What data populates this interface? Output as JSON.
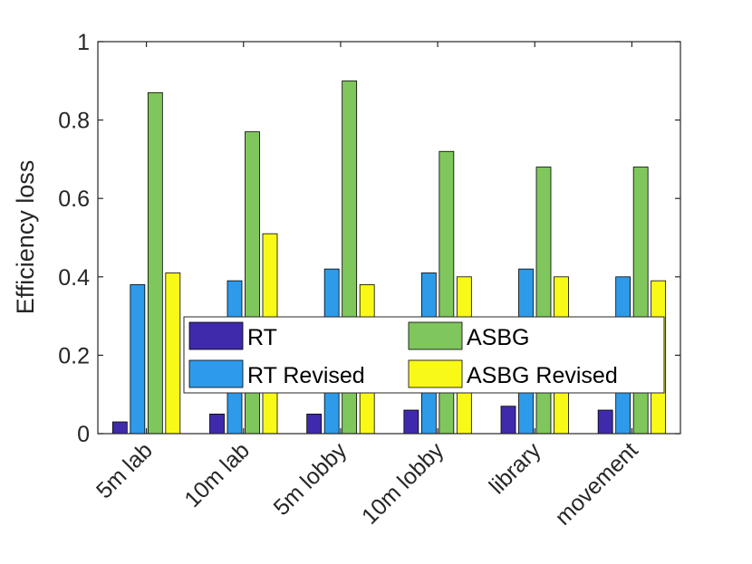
{
  "chart_data": {
    "type": "bar",
    "title": "",
    "xlabel": "",
    "ylabel": "Efficiency loss",
    "ylim": [
      0,
      1
    ],
    "yticks": [
      "0",
      "0.2",
      "0.4",
      "0.6",
      "0.8",
      "1"
    ],
    "grid": false,
    "legend_placement": "lower-center",
    "categories": [
      "5m lab",
      "10m lab",
      "5m lobby",
      "10m lobby",
      "library",
      "movement"
    ],
    "series": [
      {
        "name": "RT",
        "color": "#3F2AAB",
        "values": [
          0.03,
          0.05,
          0.05,
          0.06,
          0.07,
          0.06
        ]
      },
      {
        "name": "RT Revised",
        "color": "#2D9BEA",
        "values": [
          0.38,
          0.39,
          0.42,
          0.41,
          0.42,
          0.4
        ]
      },
      {
        "name": "ASBG",
        "color": "#7FC65C",
        "values": [
          0.87,
          0.77,
          0.9,
          0.72,
          0.68,
          0.68
        ]
      },
      {
        "name": "ASBG Revised",
        "color": "#F9F918",
        "values": [
          0.41,
          0.51,
          0.38,
          0.4,
          0.4,
          0.39
        ]
      }
    ]
  }
}
